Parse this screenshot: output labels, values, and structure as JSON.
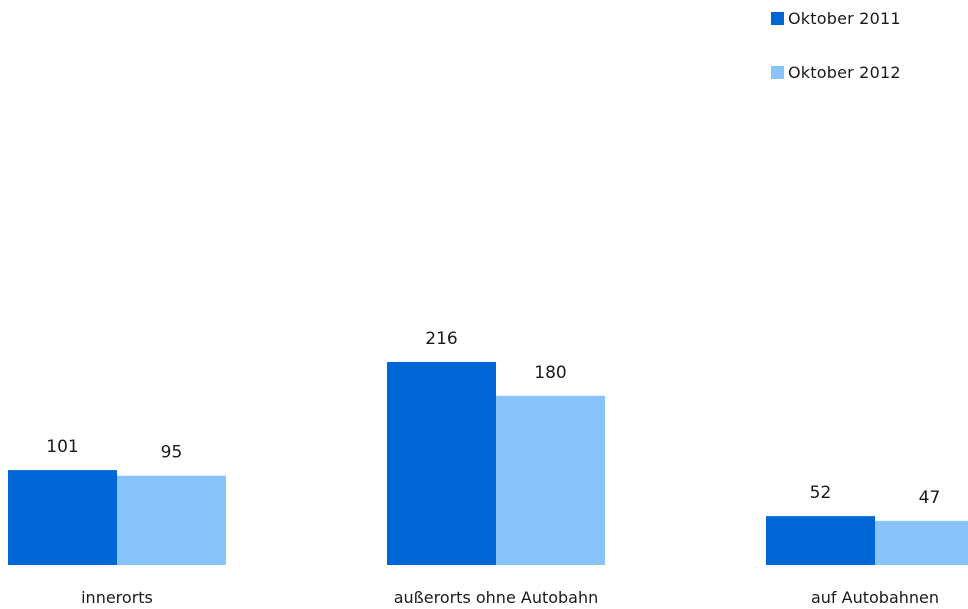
{
  "chart_data": {
    "type": "bar",
    "categories": [
      "innerorts",
      "außerorts ohne Autobahn",
      "auf Autobahnen"
    ],
    "series": [
      {
        "name": "Oktober 2011",
        "values": [
          101,
          216,
          52
        ],
        "color": "#0066d6"
      },
      {
        "name": "Oktober 2012",
        "values": [
          95,
          180,
          47
        ],
        "color": "#88c3fc"
      }
    ],
    "data_labels": [
      [
        "101",
        "216",
        "52"
      ],
      [
        "95",
        "180",
        "47"
      ]
    ],
    "title": "",
    "xlabel": "",
    "ylabel": "",
    "ylim": [
      0,
      216
    ],
    "grid": false,
    "legend_position": "top-right"
  }
}
